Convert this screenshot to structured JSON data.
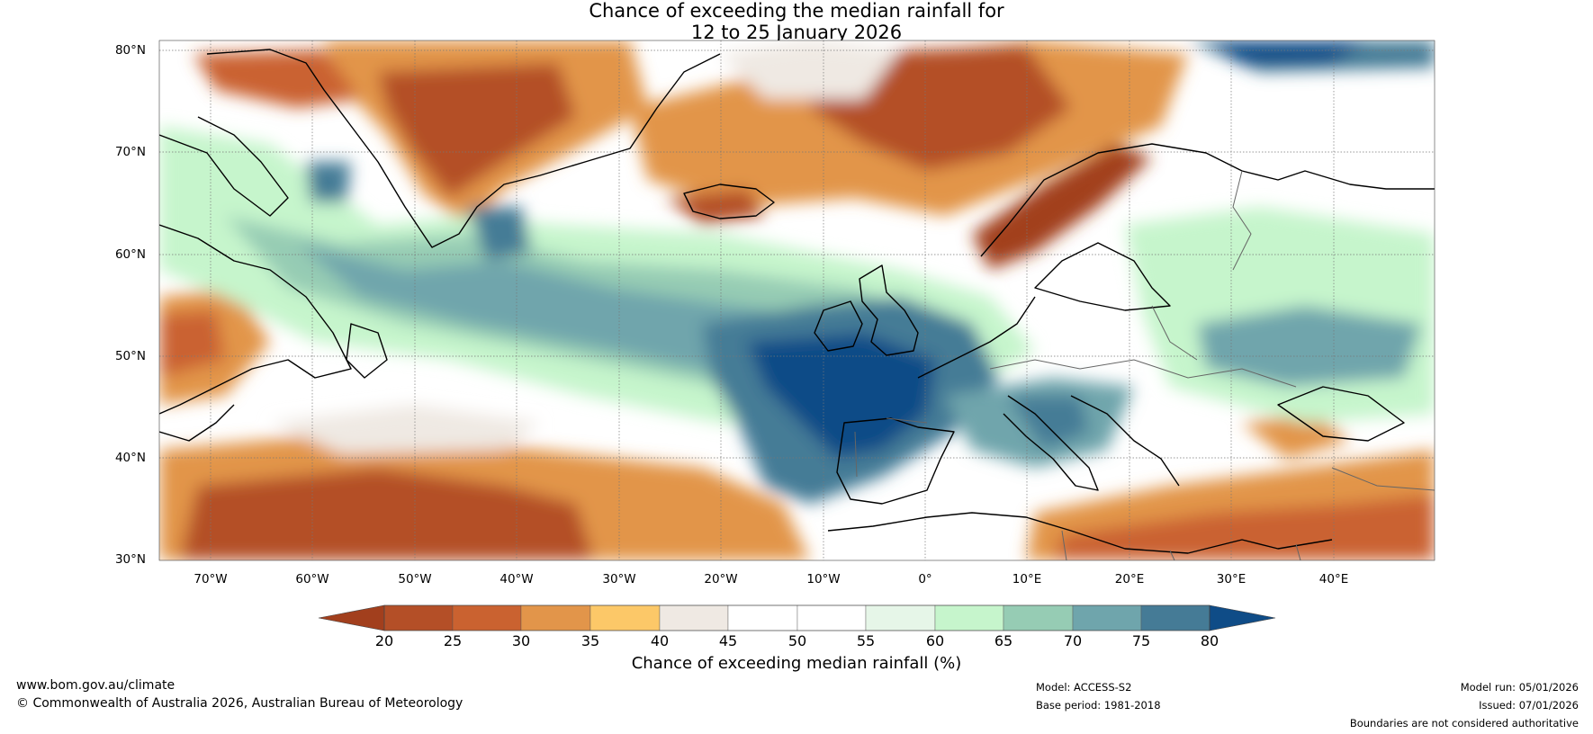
{
  "title": {
    "line1": "Chance of exceeding the median rainfall for",
    "line2": "12 to 25 January 2026"
  },
  "map": {
    "region": "North Atlantic and Europe",
    "extent": {
      "lon": [
        -75,
        50
      ],
      "lat": [
        30,
        81
      ]
    },
    "lat_labels": [
      "80°N",
      "70°N",
      "60°N",
      "50°N",
      "40°N",
      "30°N"
    ],
    "lat_values": [
      80,
      70,
      60,
      50,
      40,
      30
    ],
    "lon_labels": [
      "70°W",
      "60°W",
      "50°W",
      "40°W",
      "30°W",
      "20°W",
      "10°W",
      "0°",
      "10°E",
      "20°E",
      "30°E",
      "40°E"
    ],
    "lon_values": [
      -70,
      -60,
      -50,
      -40,
      -30,
      -20,
      -10,
      0,
      10,
      20,
      30,
      40
    ]
  },
  "colorbar": {
    "ticks": [
      "20",
      "25",
      "30",
      "35",
      "40",
      "45",
      "50",
      "55",
      "60",
      "65",
      "70",
      "75",
      "80"
    ],
    "colors": [
      "#a23f1d",
      "#b44f27",
      "#ca6230",
      "#e2954a",
      "#fcc868",
      "#efe9e3",
      "#ffffff",
      "#ffffff",
      "#e6f6e8",
      "#c6f5cc",
      "#96ccb4",
      "#6fa5ac",
      "#457b96",
      "#0f4c87"
    ],
    "label": "Chance of exceeding median rainfall (%)"
  },
  "footer": {
    "url": "www.bom.gov.au/climate",
    "copyright": "© Commonwealth of Australia 2026, Australian Bureau of Meteorology",
    "model": "Model: ACCESS-S2",
    "base_period": "Base period: 1981-2018",
    "model_run": "Model run: 05/01/2026",
    "issued": "Issued: 07/01/2026",
    "disclaimer": "Boundaries are not considered authoritative"
  }
}
